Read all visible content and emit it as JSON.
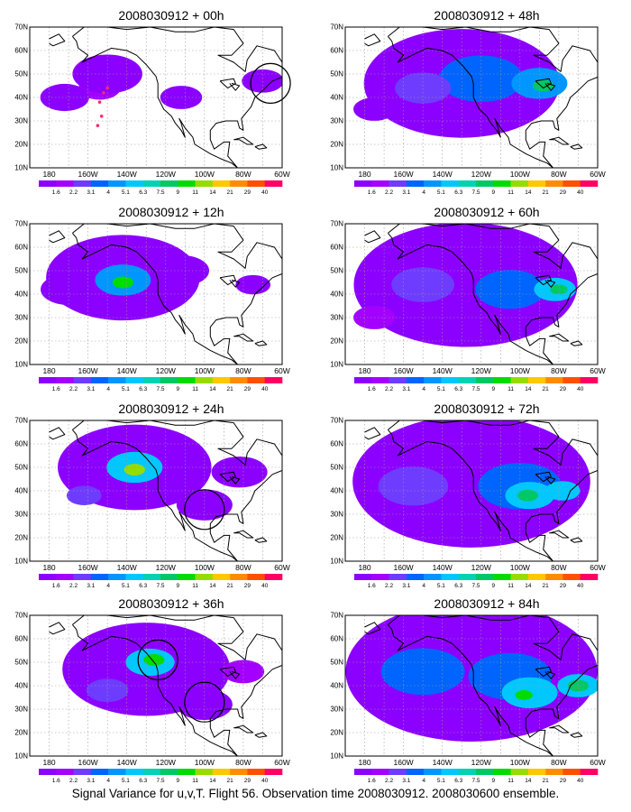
{
  "caption": "Signal Variance for u,v,T. Flight 56. Observation time 2008030912. 2008030600 ensemble.",
  "colors": {
    "scale": [
      "#ffffff",
      "#8c00ff",
      "#a300ff",
      "#6e3cff",
      "#0064ff",
      "#0096ff",
      "#00c8ff",
      "#00d2b4",
      "#00c864",
      "#00dc00",
      "#96dc00",
      "#ffc800",
      "#ff8c00",
      "#ff5000",
      "#ff0064"
    ],
    "coast": "#000000",
    "grid": "#9a9a9a",
    "marker": "#ff2a6a"
  },
  "chart_data": [
    {
      "type": "heatmap",
      "title": "2008030912 + 00h",
      "xticks": [
        "180",
        "160W",
        "140W",
        "120W",
        "100W",
        "80W",
        "60W"
      ],
      "yticks": [
        "10N",
        "20N",
        "30N",
        "40N",
        "50N",
        "60N",
        "70N"
      ],
      "xlim": [
        -190,
        -60
      ],
      "ylim": [
        10,
        70
      ],
      "colorbar_levels": [
        "1.6",
        "2.2",
        "3.1",
        "4",
        "5.1",
        "6.3",
        "7.5",
        "9",
        "11",
        "14",
        "21",
        "29",
        "40"
      ],
      "circles": [
        {
          "lon": -66,
          "lat": 46
        }
      ],
      "markers": [
        {
          "lon": -154,
          "lat": 38
        },
        {
          "lon": -152,
          "lat": 42
        },
        {
          "lon": -150,
          "lat": 44
        },
        {
          "lon": -153,
          "lat": 32
        },
        {
          "lon": -155,
          "lat": 28
        }
      ],
      "blobs": [
        {
          "lon": -154,
          "lat": 44,
          "level": 2,
          "r": 6
        },
        {
          "lon": -150,
          "lat": 50,
          "level": 1,
          "r": 10
        },
        {
          "lon": -172,
          "lat": 40,
          "level": 1,
          "r": 7
        },
        {
          "lon": -112,
          "lat": 40,
          "level": 1,
          "r": 6
        },
        {
          "lon": -70,
          "lat": 47,
          "level": 1,
          "r": 6
        }
      ]
    },
    {
      "type": "heatmap",
      "title": "2008030912 + 12h",
      "xticks": [
        "180",
        "160W",
        "140W",
        "120W",
        "100W",
        "80W",
        "60W"
      ],
      "yticks": [
        "10N",
        "20N",
        "30N",
        "40N",
        "50N",
        "60N",
        "70N"
      ],
      "xlim": [
        -190,
        -60
      ],
      "ylim": [
        10,
        70
      ],
      "colorbar_levels": [
        "1.6",
        "2.2",
        "3.1",
        "4",
        "5.1",
        "6.3",
        "7.5",
        "9",
        "11",
        "14",
        "21",
        "29",
        "40"
      ],
      "circles": [],
      "markers": [],
      "blobs": [
        {
          "lon": -142,
          "lat": 47,
          "level": 1,
          "r": 22
        },
        {
          "lon": -142,
          "lat": 46,
          "level": 5,
          "r": 8
        },
        {
          "lon": -142,
          "lat": 45,
          "level": 9,
          "r": 3
        },
        {
          "lon": -170,
          "lat": 42,
          "level": 1,
          "r": 8
        },
        {
          "lon": -112,
          "lat": 50,
          "level": 1,
          "r": 8
        },
        {
          "lon": -75,
          "lat": 44,
          "level": 1,
          "r": 5
        }
      ]
    },
    {
      "type": "heatmap",
      "title": "2008030912 + 24h",
      "xticks": [
        "180",
        "160W",
        "140W",
        "120W",
        "100W",
        "80W",
        "60W"
      ],
      "yticks": [
        "10N",
        "20N",
        "30N",
        "40N",
        "50N",
        "60N",
        "70N"
      ],
      "xlim": [
        -190,
        -60
      ],
      "ylim": [
        10,
        70
      ],
      "colorbar_levels": [
        "1.6",
        "2.2",
        "3.1",
        "4",
        "5.1",
        "6.3",
        "7.5",
        "9",
        "11",
        "14",
        "21",
        "29",
        "40"
      ],
      "circles": [
        {
          "lon": -100,
          "lat": 32
        }
      ],
      "markers": [],
      "blobs": [
        {
          "lon": -136,
          "lat": 50,
          "level": 1,
          "r": 22
        },
        {
          "lon": -136,
          "lat": 50,
          "level": 6,
          "r": 8
        },
        {
          "lon": -136,
          "lat": 49,
          "level": 10,
          "r": 3
        },
        {
          "lon": -162,
          "lat": 38,
          "level": 3,
          "r": 5
        },
        {
          "lon": -100,
          "lat": 34,
          "level": 1,
          "r": 8
        },
        {
          "lon": -82,
          "lat": 48,
          "level": 1,
          "r": 8
        }
      ]
    },
    {
      "type": "heatmap",
      "title": "2008030912 + 36h",
      "xticks": [
        "180",
        "160W",
        "140W",
        "120W",
        "100W",
        "80W",
        "60W"
      ],
      "yticks": [
        "10N",
        "20N",
        "30N",
        "40N",
        "50N",
        "60N",
        "70N"
      ],
      "xlim": [
        -190,
        -60
      ],
      "ylim": [
        10,
        70
      ],
      "colorbar_levels": [
        "1.6",
        "2.2",
        "3.1",
        "4",
        "5.1",
        "6.3",
        "7.5",
        "9",
        "11",
        "14",
        "21",
        "29",
        "40"
      ],
      "circles": [
        {
          "lon": -124,
          "lat": 51
        },
        {
          "lon": -100,
          "lat": 33
        }
      ],
      "markers": [],
      "blobs": [
        {
          "lon": -130,
          "lat": 47,
          "level": 1,
          "r": 24
        },
        {
          "lon": -128,
          "lat": 50,
          "level": 6,
          "r": 7
        },
        {
          "lon": -126,
          "lat": 51,
          "level": 9,
          "r": 3
        },
        {
          "lon": -150,
          "lat": 38,
          "level": 3,
          "r": 6
        },
        {
          "lon": -100,
          "lat": 32,
          "level": 1,
          "r": 8
        },
        {
          "lon": -80,
          "lat": 46,
          "level": 2,
          "r": 6
        }
      ]
    },
    {
      "type": "heatmap",
      "title": "2008030912 + 48h",
      "xticks": [
        "180",
        "160W",
        "140W",
        "120W",
        "100W",
        "80W",
        "60W"
      ],
      "yticks": [
        "10N",
        "20N",
        "30N",
        "40N",
        "50N",
        "60N",
        "70N"
      ],
      "xlim": [
        -190,
        -60
      ],
      "ylim": [
        10,
        70
      ],
      "colorbar_levels": [
        "1.6",
        "2.2",
        "3.1",
        "4",
        "5.1",
        "6.3",
        "7.5",
        "9",
        "11",
        "14",
        "21",
        "29",
        "40"
      ],
      "circles": [],
      "markers": [],
      "blobs": [
        {
          "lon": -130,
          "lat": 46,
          "level": 1,
          "r": 28
        },
        {
          "lon": -120,
          "lat": 48,
          "level": 4,
          "r": 12
        },
        {
          "lon": -90,
          "lat": 46,
          "level": 5,
          "r": 8
        },
        {
          "lon": -88,
          "lat": 45,
          "level": 8,
          "r": 3
        },
        {
          "lon": -150,
          "lat": 44,
          "level": 3,
          "r": 8
        },
        {
          "lon": -175,
          "lat": 35,
          "level": 1,
          "r": 6
        }
      ]
    },
    {
      "type": "heatmap",
      "title": "2008030912 + 60h",
      "xticks": [
        "180",
        "160W",
        "140W",
        "120W",
        "100W",
        "80W",
        "60W"
      ],
      "yticks": [
        "10N",
        "20N",
        "30N",
        "40N",
        "50N",
        "60N",
        "70N"
      ],
      "xlim": [
        -190,
        -60
      ],
      "ylim": [
        10,
        70
      ],
      "colorbar_levels": [
        "1.6",
        "2.2",
        "3.1",
        "4",
        "5.1",
        "6.3",
        "7.5",
        "9",
        "11",
        "14",
        "21",
        "29",
        "40"
      ],
      "circles": [],
      "markers": [],
      "blobs": [
        {
          "lon": -128,
          "lat": 44,
          "level": 1,
          "r": 32
        },
        {
          "lon": -150,
          "lat": 44,
          "level": 3,
          "r": 9
        },
        {
          "lon": -105,
          "lat": 42,
          "level": 4,
          "r": 10
        },
        {
          "lon": -82,
          "lat": 42,
          "level": 6,
          "r": 6
        },
        {
          "lon": -80,
          "lat": 42,
          "level": 8,
          "r": 2.5
        },
        {
          "lon": -175,
          "lat": 30,
          "level": 2,
          "r": 6
        }
      ]
    },
    {
      "type": "heatmap",
      "title": "2008030912 + 72h",
      "xticks": [
        "180",
        "160W",
        "140W",
        "120W",
        "100W",
        "80W",
        "60W"
      ],
      "yticks": [
        "10N",
        "20N",
        "30N",
        "40N",
        "50N",
        "60N",
        "70N"
      ],
      "xlim": [
        -190,
        -60
      ],
      "ylim": [
        10,
        70
      ],
      "colorbar_levels": [
        "1.6",
        "2.2",
        "3.1",
        "4",
        "5.1",
        "6.3",
        "7.5",
        "9",
        "11",
        "14",
        "21",
        "29",
        "40"
      ],
      "circles": [],
      "markers": [],
      "blobs": [
        {
          "lon": -125,
          "lat": 44,
          "level": 1,
          "r": 34
        },
        {
          "lon": -155,
          "lat": 42,
          "level": 3,
          "r": 10
        },
        {
          "lon": -100,
          "lat": 42,
          "level": 4,
          "r": 12
        },
        {
          "lon": -95,
          "lat": 38,
          "level": 6,
          "r": 7
        },
        {
          "lon": -96,
          "lat": 38,
          "level": 8,
          "r": 3
        },
        {
          "lon": -78,
          "lat": 40,
          "level": 6,
          "r": 5
        }
      ]
    },
    {
      "type": "heatmap",
      "title": "2008030912 + 84h",
      "xticks": [
        "180",
        "160W",
        "140W",
        "120W",
        "100W",
        "80W",
        "60W"
      ],
      "yticks": [
        "10N",
        "20N",
        "30N",
        "40N",
        "50N",
        "60N",
        "70N"
      ],
      "xlim": [
        -190,
        -60
      ],
      "ylim": [
        10,
        70
      ],
      "colorbar_levels": [
        "1.6",
        "2.2",
        "3.1",
        "4",
        "5.1",
        "6.3",
        "7.5",
        "9",
        "11",
        "14",
        "21",
        "29",
        "40"
      ],
      "circles": [],
      "markers": [],
      "blobs": [
        {
          "lon": -125,
          "lat": 46,
          "level": 1,
          "r": 36
        },
        {
          "lon": -150,
          "lat": 46,
          "level": 4,
          "r": 12
        },
        {
          "lon": -105,
          "lat": 44,
          "level": 4,
          "r": 12
        },
        {
          "lon": -95,
          "lat": 37,
          "level": 6,
          "r": 8
        },
        {
          "lon": -98,
          "lat": 36,
          "level": 9,
          "r": 2.5
        },
        {
          "lon": -70,
          "lat": 40,
          "level": 6,
          "r": 6
        },
        {
          "lon": -70,
          "lat": 40,
          "level": 8,
          "r": 3
        }
      ]
    }
  ]
}
